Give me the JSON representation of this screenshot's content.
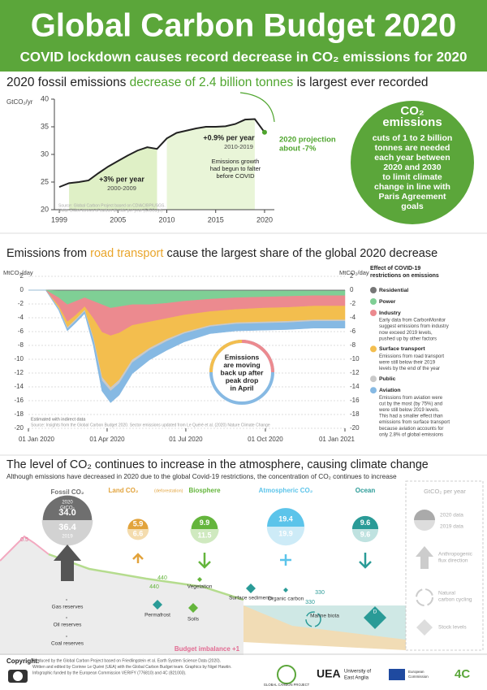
{
  "header": {
    "title": "Global Carbon Budget 2020",
    "subtitle": "COVID lockdown causes record decrease in CO₂ emissions for 2020"
  },
  "chart_data": [
    {
      "type": "line",
      "heading": [
        "2020 fossil emissions",
        "decrease of 2.4 billion tonnes",
        "is largest ever recorded"
      ],
      "y_label": "GtCO₂/yr",
      "x": [
        1999,
        2000,
        2001,
        2002,
        2003,
        2004,
        2005,
        2006,
        2007,
        2008,
        2009,
        2010,
        2011,
        2012,
        2013,
        2014,
        2015,
        2016,
        2017,
        2018,
        2019,
        2020
      ],
      "series": [
        {
          "color": "#222222",
          "values": [
            24.1,
            24.8,
            25.0,
            25.3,
            26.6,
            27.8,
            28.8,
            29.8,
            30.7,
            31.3,
            31.0,
            32.9,
            33.9,
            34.3,
            34.7,
            35.0,
            35.0,
            35.1,
            35.5,
            36.3,
            36.4,
            34.0
          ]
        }
      ],
      "xlim": [
        1998.5,
        2021
      ],
      "xticks": [
        1999,
        2005,
        2010,
        2015,
        2020
      ],
      "ylim": [
        20,
        40
      ],
      "yticks": [
        20,
        25,
        30,
        35,
        40
      ],
      "annotations": {
        "trend1": [
          "+3% per year",
          "2000-2009"
        ],
        "trend2": [
          "+0.9% per year",
          "2010-2019"
        ],
        "falter": [
          "Emissions growth",
          "had begun to falter",
          "before COVID"
        ],
        "projection": [
          "2020 projection",
          "about -7%"
        ],
        "source": [
          "Source: Global Carbon Project based on CDIAC/BP/USGS.",
          "Units: Billion tonnes of carbon dioxide per year (GtCO₂/yr)"
        ]
      },
      "callout": {
        "title": [
          "CO₂",
          "emissions"
        ],
        "text": [
          "cuts of 1 to 2 billion",
          "tonnes are needed",
          "each year between",
          "2020 and 2030",
          "to limit climate",
          "change in line with",
          "Paris Agreement",
          "goals"
        ]
      }
    },
    {
      "type": "stacked-area",
      "heading": [
        "Emissions from",
        "road transport",
        "cause the largest share of the global 2020 decrease"
      ],
      "y_label": "MtCO₂/day",
      "x": [
        0,
        20,
        35,
        45,
        55,
        65,
        75,
        85,
        95,
        105,
        120,
        140,
        160,
        180,
        210,
        240,
        270,
        300,
        330,
        366
      ],
      "xlim": [
        0,
        366
      ],
      "xticks": [
        {
          "value": 0,
          "label": "01 Jan 2020"
        },
        {
          "value": 91,
          "label": "01 Apr 2020"
        },
        {
          "value": 182,
          "label": "01 Jul 2020"
        },
        {
          "value": 274,
          "label": "01 Oct 2020"
        },
        {
          "value": 366,
          "label": "01 Jan 2021"
        }
      ],
      "ylim": [
        -20,
        2
      ],
      "yticks": [
        2,
        0,
        -2,
        -4,
        -6,
        -8,
        -10,
        -12,
        -14,
        -16,
        -18,
        -20
      ],
      "grid": true,
      "legend_title": [
        "Effect of COVID-19",
        "restrictions on emissions"
      ],
      "series": [
        {
          "name": "Residential",
          "color": "#777777",
          "values": [
            0,
            0,
            -0.1,
            -0.1,
            -0.1,
            -0.1,
            -0.1,
            -0.1,
            -0.1,
            -0.1,
            -0.1,
            -0.1,
            -0.1,
            -0.1,
            -0.1,
            -0.1,
            -0.1,
            -0.1,
            -0.1,
            -0.1
          ]
        },
        {
          "name": "Power",
          "color": "#7fcf95",
          "values": [
            0,
            0,
            -1.0,
            -2.0,
            -1.5,
            -1.0,
            -1.5,
            -2.0,
            -2.5,
            -2.3,
            -2.0,
            -2.0,
            -1.8,
            -1.5,
            -1.2,
            -1.0,
            -0.9,
            -0.8,
            -0.7,
            -0.7
          ]
        },
        {
          "name": "Industry",
          "color": "#ec8a8f",
          "values": [
            0,
            0,
            -1.2,
            -2.5,
            -2.0,
            -1.3,
            -2.5,
            -4.0,
            -4.0,
            -3.8,
            -3.0,
            -2.5,
            -2.2,
            -2.0,
            -1.8,
            -1.7,
            -1.6,
            -1.6,
            -1.5,
            -1.5
          ],
          "description": [
            "Early data from CarbonMonitor",
            "suggest emissions from industry",
            "now exceed 2019 levels,",
            "pushed up by other factors"
          ]
        },
        {
          "name": "Surface transport",
          "color": "#f3be4e",
          "values": [
            0,
            0,
            -0.3,
            -0.8,
            -0.6,
            -0.5,
            -2.8,
            -6.5,
            -7.5,
            -6.8,
            -5.0,
            -3.8,
            -3.0,
            -2.5,
            -2.0,
            -1.9,
            -2.0,
            -2.0,
            -2.0,
            -2.0
          ],
          "description": [
            "Emissions from road transport",
            "were still below their 2019",
            "levels by the end of the year"
          ]
        },
        {
          "name": "Public",
          "color": "#c9c9c9",
          "values": [
            0,
            0,
            -0.1,
            -0.2,
            -0.2,
            -0.2,
            -0.3,
            -0.5,
            -0.5,
            -0.5,
            -0.4,
            -0.3,
            -0.3,
            -0.2,
            -0.2,
            -0.2,
            -0.2,
            -0.2,
            -0.2,
            -0.2
          ]
        },
        {
          "name": "Aviation",
          "color": "#86b9e3",
          "values": [
            0,
            0,
            -0.2,
            -0.3,
            -0.3,
            -0.3,
            -0.8,
            -1.5,
            -1.7,
            -1.7,
            -1.6,
            -1.4,
            -1.3,
            -1.2,
            -1.0,
            -1.0,
            -1.0,
            -1.0,
            -1.0,
            -1.0
          ],
          "description": [
            "Emissions from aviation were",
            "cut by the most (by 75%) and",
            "were still below 2019 levels.",
            "This had a smaller effect than",
            "emissions from surface transport",
            "because aviation accounts for",
            "only 2.8% of global emissions"
          ]
        }
      ],
      "annotations": {
        "bubble": [
          "Emissions",
          "are moving",
          "back up after",
          "peak drop",
          "in April"
        ],
        "estimated": "Estimated with indirect data",
        "source": "Source: Insights from the Global Carbon Budget 2020. Sector emissions updated from Le Quéré et al. (2020) Nature Climate Change"
      }
    }
  ],
  "budget": {
    "heading": "The level of CO₂ continues to increase in the atmosphere, causing climate change",
    "subtitle": "Although emissions have decreased in 2020 due to the global Covid-19 restrictions, the concentration of CO₂ continues to increase",
    "fluxes": [
      {
        "name": "Fossil CO₂",
        "values": [
          34.0,
          36.4
        ],
        "value_labels": [
          "34.0",
          "36.4"
        ],
        "year_labels": [
          "2020",
          "2019"
        ],
        "unit": "GtCO₂",
        "color": "#6f6f6f",
        "light": "#d2d2d2"
      },
      {
        "name": "Land CO₂",
        "qualifier": "(deforestation)",
        "values": [
          5.9,
          6.6
        ],
        "color": "#e2a33b",
        "light": "#f4dcae"
      },
      {
        "name": "Biosphere",
        "values": [
          9.9,
          11.5
        ],
        "color": "#64b53c",
        "light": "#cfe9bf"
      },
      {
        "name": "Atmospheric CO₂",
        "values": [
          19.4,
          19.9
        ],
        "color": "#5cc4ea",
        "light": "#cdebf7"
      },
      {
        "name": "Ocean",
        "values": [
          9.6,
          9.6
        ],
        "color": "#2a9b97",
        "light": "#bfe2e0"
      }
    ],
    "stocks": [
      "Gas reserves",
      "Oil reserves",
      "Coal reserves",
      "Permafrost",
      "Soils",
      "Vegetation",
      "Surface sediments",
      "Organic carbon",
      "Marine biota",
      "Dissolved inorganic carbon"
    ],
    "stock_numbers": [
      0.5,
      440,
      440,
      330,
      330
    ],
    "imbalance": "Budget imbalance +1",
    "legend": {
      "title": "GtCO₂ per year",
      "items": [
        [
          "2020 data"
        ],
        [
          "2019 data"
        ],
        [
          "Anthropogenic",
          "flux direction"
        ],
        [
          "Natural",
          "carbon cycling"
        ],
        [
          "Stock levels"
        ]
      ]
    }
  },
  "footer": {
    "copyright": "Copyright:",
    "credits": [
      "Produced by the Global Carbon Project based on Friedlingstein et al. Earth System Science Data (2020).",
      "Written and edited by Corinne Le Quéré (UEA) with the Global Carbon Budget team. Graphics by Nigel Hawtin.",
      "Infographic funded by the European Commission VERIFY (776810) and 4C (821003)."
    ],
    "logos": [
      "GLOBAL CARBON PROJECT",
      "UEA",
      "University of",
      "East Anglia",
      "European",
      "Commission",
      "4C"
    ]
  }
}
